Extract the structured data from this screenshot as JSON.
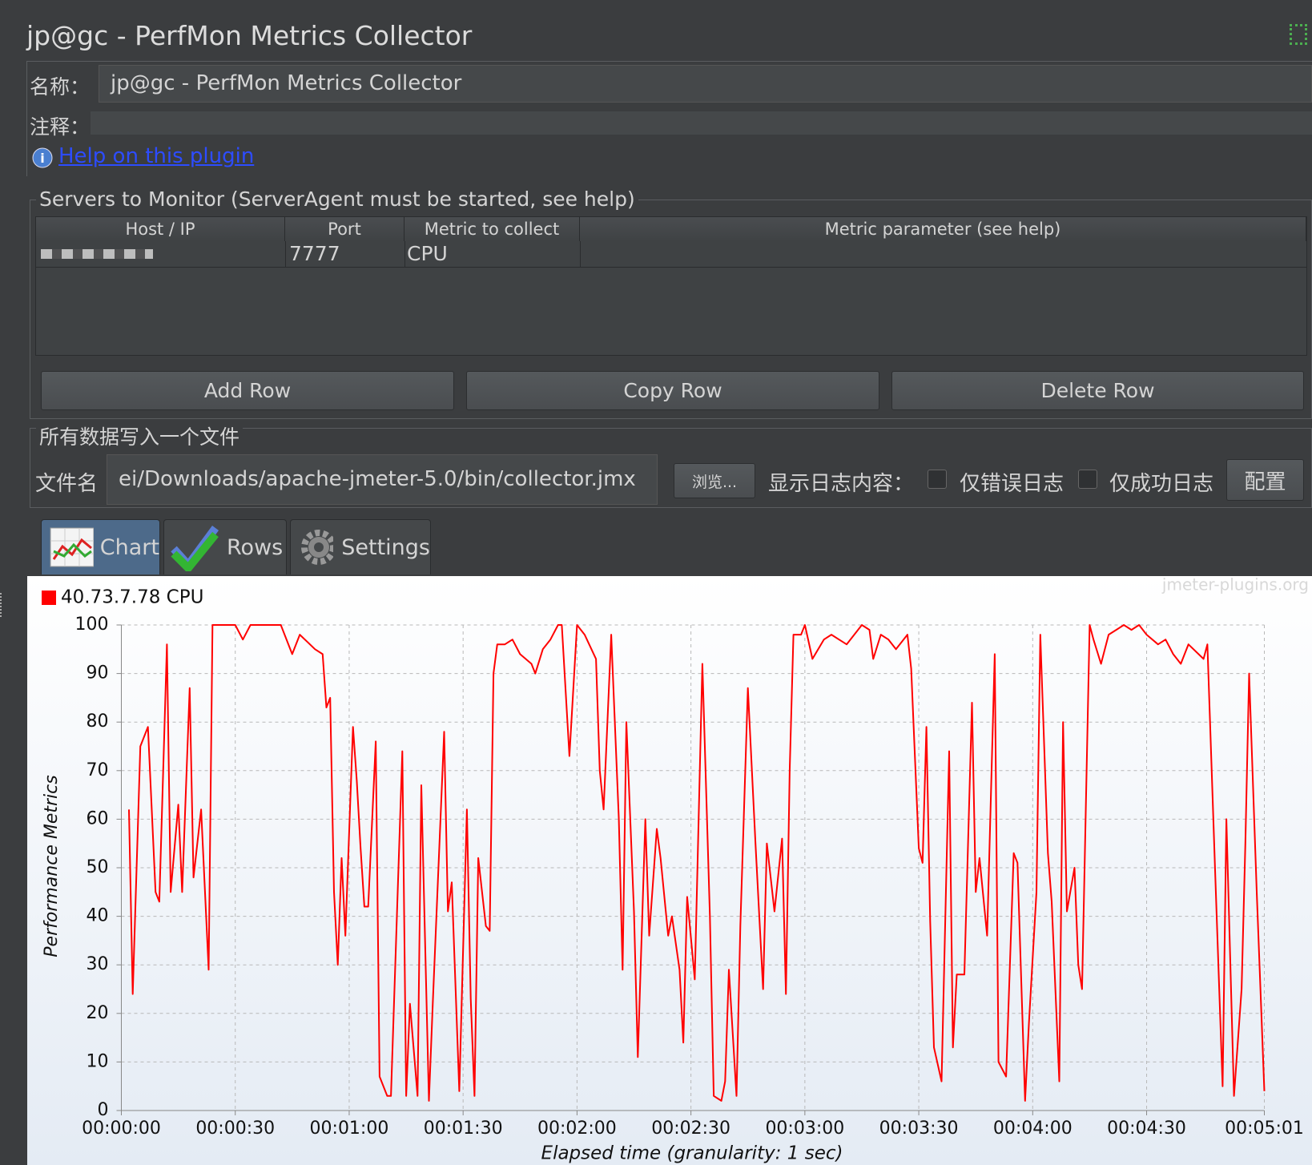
{
  "window_title": "jp@gc - PerfMon Metrics Collector",
  "form": {
    "name_label": "名称：",
    "name_value": "jp@gc - PerfMon Metrics Collector",
    "comment_label": "注释：",
    "help_link": "Help on this plugin"
  },
  "servers": {
    "title": "Servers to Monitor (ServerAgent must be started, see help)",
    "columns": [
      "Host / IP",
      "Port",
      "Metric to collect",
      "Metric parameter (see help)"
    ],
    "rows": [
      {
        "port": "7777",
        "metric": "CPU"
      }
    ]
  },
  "buttons": [
    "Add Row",
    "Copy Row",
    "Delete Row"
  ],
  "file": {
    "title": "所有数据写入一个文件",
    "filename_label": "文件名",
    "filename_value": "ei/Downloads/apache-jmeter-5.0/bin/collector.jmx",
    "browse": "浏览...",
    "log_label": "显示日志内容：",
    "errors_only": "仅错误日志",
    "success_only": "仅成功日志",
    "configure": "配置"
  },
  "tabs": [
    "Chart",
    "Rows",
    "Settings"
  ],
  "chart_data": {
    "type": "line",
    "watermark": "jmeter-plugins.org",
    "xlabel": "Elapsed time (granularity: 1 sec)",
    "ylabel": "Performance Metrics",
    "x": [
      2,
      3,
      5,
      7,
      9,
      10,
      12,
      13,
      15,
      16,
      18,
      19,
      21,
      23,
      24,
      26,
      27,
      30,
      32,
      34,
      36,
      38,
      42,
      45,
      47,
      51,
      53,
      54,
      55,
      56,
      57,
      58,
      59,
      61,
      62,
      63,
      64,
      65,
      67,
      68,
      70,
      71,
      74,
      75,
      76,
      78,
      79,
      81,
      82,
      85,
      86,
      87,
      89,
      91,
      92,
      93,
      94,
      96,
      97,
      98,
      99,
      101,
      103,
      105,
      108,
      109,
      111,
      113,
      115,
      116,
      118,
      120,
      122,
      125,
      126,
      127,
      129,
      131,
      132,
      133,
      135,
      136,
      138,
      139,
      141,
      142,
      144,
      145,
      147,
      148,
      149,
      151,
      153,
      155,
      156,
      158,
      159,
      160,
      162,
      163,
      165,
      167,
      169,
      170,
      172,
      174,
      175,
      176,
      177,
      179,
      180,
      182,
      185,
      187,
      189,
      191,
      195,
      197,
      198,
      200,
      202,
      204,
      207,
      208,
      210,
      211,
      212,
      213,
      214,
      216,
      218,
      219,
      220,
      222,
      224,
      225,
      226,
      228,
      230,
      231,
      233,
      235,
      236,
      238,
      239,
      241,
      242,
      244,
      245,
      247,
      248,
      249,
      251,
      252,
      253,
      255,
      256,
      258,
      260,
      262,
      264,
      266,
      268,
      270,
      273,
      275,
      277,
      279,
      281,
      285,
      286,
      288,
      290,
      291,
      293,
      295,
      296,
      297,
      299,
      301
    ],
    "series": [
      {
        "name": "40.73.7.78 CPU",
        "color": "#ff0000",
        "values": [
          62,
          24,
          75,
          79,
          45,
          43,
          96,
          45,
          63,
          45,
          87,
          48,
          62,
          29,
          100,
          100,
          100,
          100,
          97,
          100,
          100,
          100,
          100,
          94,
          98,
          95,
          94,
          83,
          85,
          45,
          30,
          52,
          36,
          79,
          68,
          54,
          42,
          42,
          76,
          7,
          3,
          3,
          74,
          3,
          22,
          3,
          67,
          2,
          22,
          78,
          41,
          47,
          4,
          62,
          23,
          3,
          52,
          38,
          37,
          90,
          96,
          96,
          97,
          94,
          92,
          90,
          95,
          97,
          100,
          100,
          73,
          100,
          98,
          93,
          70,
          62,
          98,
          60,
          29,
          80,
          41,
          11,
          60,
          36,
          58,
          52,
          36,
          40,
          29,
          14,
          44,
          27,
          92,
          40,
          3,
          2,
          6,
          29,
          3,
          38,
          87,
          55,
          25,
          55,
          41,
          56,
          24,
          70,
          98,
          98,
          100,
          93,
          97,
          98,
          97,
          96,
          100,
          99,
          93,
          98,
          97,
          95,
          98,
          91,
          54,
          51,
          79,
          39,
          13,
          6,
          74,
          13,
          28,
          28,
          84,
          45,
          52,
          36,
          94,
          10,
          7,
          53,
          51,
          2,
          18,
          45,
          98,
          53,
          43,
          6,
          80,
          41,
          50,
          30,
          25,
          100,
          97,
          92,
          98,
          99,
          100,
          99,
          100,
          98,
          96,
          97,
          94,
          92,
          96,
          93,
          96,
          50,
          5,
          60,
          3,
          25,
          55,
          90,
          45,
          4
        ]
      }
    ],
    "xlim": [
      0,
      301
    ],
    "ylim": [
      0,
      100
    ],
    "xticks": [
      {
        "value": 0,
        "label": "00:00:00"
      },
      {
        "value": 30,
        "label": "00:00:30"
      },
      {
        "value": 60,
        "label": "00:01:00"
      },
      {
        "value": 90,
        "label": "00:01:30"
      },
      {
        "value": 120,
        "label": "00:02:00"
      },
      {
        "value": 150,
        "label": "00:02:30"
      },
      {
        "value": 180,
        "label": "00:03:00"
      },
      {
        "value": 210,
        "label": "00:03:30"
      },
      {
        "value": 240,
        "label": "00:04:00"
      },
      {
        "value": 270,
        "label": "00:04:30"
      },
      {
        "value": 301,
        "label": "00:05:01"
      }
    ],
    "yticks": [
      0,
      10,
      20,
      30,
      40,
      50,
      60,
      70,
      80,
      90,
      100
    ],
    "grid": true
  }
}
